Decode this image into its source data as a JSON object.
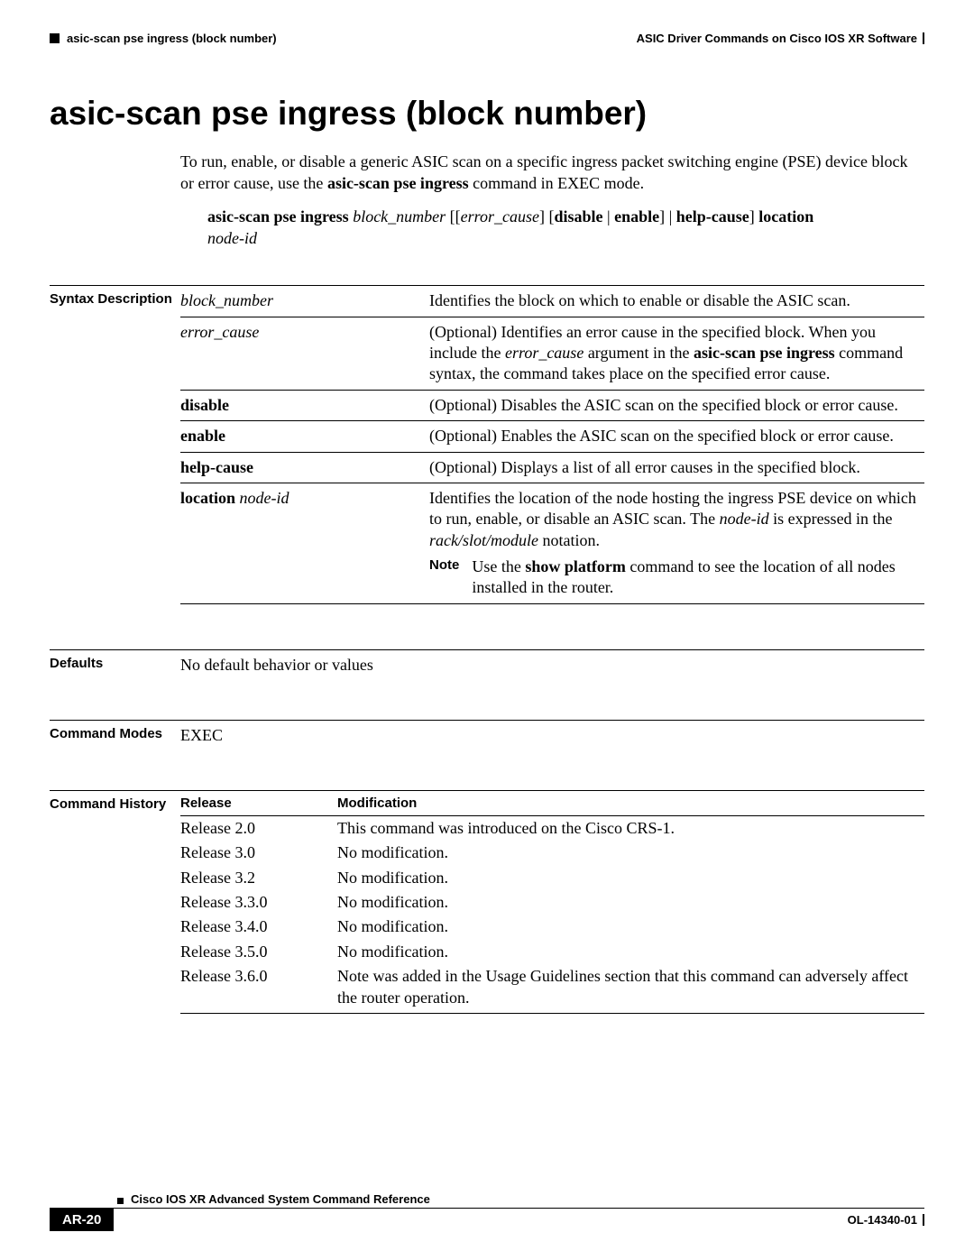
{
  "header": {
    "left": "asic-scan pse ingress (block number)",
    "right": "ASIC Driver Commands on Cisco IOS XR Software"
  },
  "title": "asic-scan pse ingress (block number)",
  "intro": {
    "p1a": "To run, enable, or disable a generic ASIC scan on a specific ingress packet switching engine (PSE) device block or error cause, use the ",
    "p1b": "asic-scan pse ingress",
    "p1c": " command in EXEC mode."
  },
  "syntax": {
    "cmd": "asic-scan pse ingress",
    "arg1": "block_number",
    "open1": " [[",
    "arg2": "error_cause",
    "close1": "] [",
    "opt1": "disable",
    "pipe": " | ",
    "opt2": "enable",
    "close2": "] | ",
    "opt3": "help-cause",
    "close3": "] ",
    "loc": "location",
    "nodeid": "node-id"
  },
  "labels": {
    "syntax_desc": "Syntax Description",
    "defaults": "Defaults",
    "modes": "Command Modes",
    "history": "Command History",
    "release": "Release",
    "modification": "Modification",
    "note": "Note"
  },
  "syntax_rows": {
    "r1p": "block_number",
    "r1d": "Identifies the block on which to enable or disable the ASIC scan.",
    "r2p": "error_cause",
    "r2d1": "(Optional) Identifies an error cause in the specified block. When you include the ",
    "r2d2": "error_cause",
    "r2d3": " argument in the ",
    "r2d4": "asic-scan pse ingress",
    "r2d5": " command syntax, the command takes place on the specified error cause.",
    "r3p": "disable",
    "r3d": "(Optional) Disables the ASIC scan on the specified block or error cause.",
    "r4p": "enable",
    "r4d": "(Optional) Enables the ASIC scan on the specified block or error cause.",
    "r5p": "help-cause",
    "r5d": "(Optional) Displays a list of all error causes in the specified block.",
    "r6p1": "location",
    "r6p2": "node-id",
    "r6d1": "Identifies the location of the node hosting the ingress PSE device on which to run, enable, or disable an ASIC scan. The ",
    "r6d2": "node-id",
    "r6d3": " is expressed in the ",
    "r6d4": "rack/slot/module",
    "r6d5": " notation.",
    "note1": "Use the ",
    "note2": "show platform",
    "note3": " command to see the location of all nodes installed in the router."
  },
  "defaults": "No default behavior or values",
  "modes": "EXEC",
  "history": {
    "r1": "Release 2.0",
    "m1": "This command was introduced on the Cisco CRS-1.",
    "r2": "Release 3.0",
    "m2": "No modification.",
    "r3": "Release 3.2",
    "m3": "No modification.",
    "r4": "Release 3.3.0",
    "m4": "No modification.",
    "r5": "Release 3.4.0",
    "m5": "No modification.",
    "r6": "Release 3.5.0",
    "m6": "No modification.",
    "r7": "Release 3.6.0",
    "m7": "Note was added in the Usage Guidelines section that this command can adversely affect the router operation."
  },
  "footer": {
    "ref": "Cisco IOS XR Advanced System Command Reference",
    "page": "AR-20",
    "docid": "OL-14340-01"
  }
}
